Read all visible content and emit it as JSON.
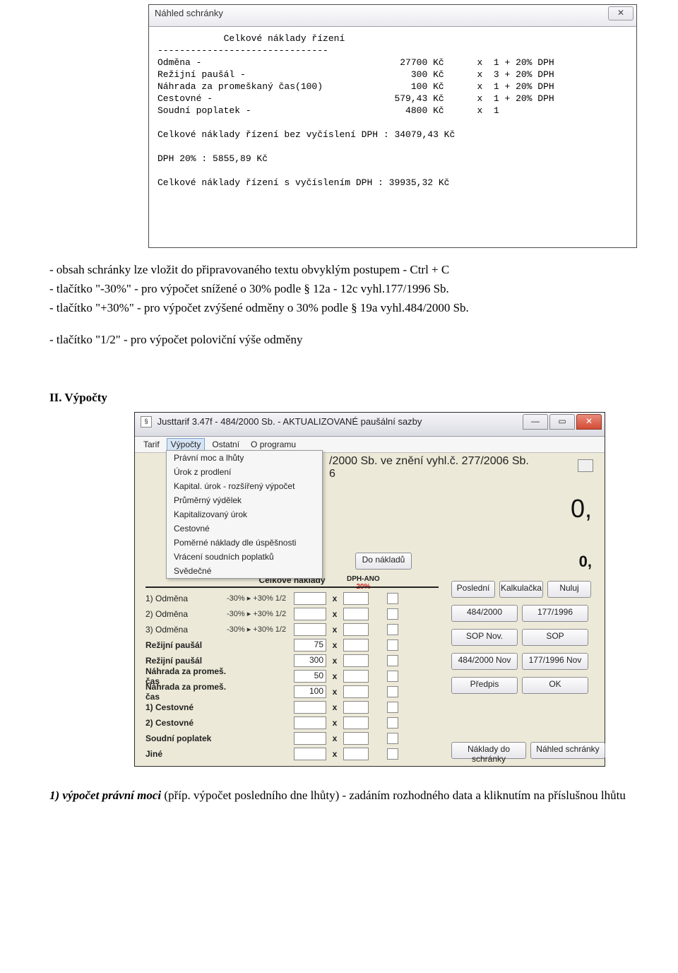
{
  "win1": {
    "title": "Náhled schránky",
    "close": "✕",
    "header": "Celkové náklady řízení",
    "dashes": "-------------------------------",
    "rows": [
      {
        "label": "Odměna -",
        "amount": "27700 Kč",
        "mult": "x  1 + 20% DPH"
      },
      {
        "label": "Režijní paušál -",
        "amount": "300 Kč",
        "mult": "x  3 + 20% DPH"
      },
      {
        "label": "Náhrada za promeškaný čas(100)",
        "amount": "100 Kč",
        "mult": "x  1 + 20% DPH"
      },
      {
        "label": "Cestovné -",
        "amount": "579,43 Kč",
        "mult": "x  1 + 20% DPH"
      },
      {
        "label": "Soudní poplatek -",
        "amount": "4800 Kč",
        "mult": "x  1"
      }
    ],
    "sum1": "Celkové náklady řízení bez vyčíslení DPH : 34079,43 Kč",
    "dphline": "DPH 20% : 5855,89 Kč",
    "sum2": "Celkové náklady řízení s vyčíslením DPH : 39935,32 Kč"
  },
  "body": {
    "p1": "- obsah schránky lze vložit do připravovaného  textu obvyklým postupem - Ctrl + C",
    "p2": "- tlačítko  \"-30%\"  -  pro  výpočet  snížené  o  30%  podle  §  12a  -  12c  vyhl.177/1996  Sb.",
    "p3": "- tlačítko  \"+30%\" - pro výpočet zvýšené odměny o 30% podle § 19a vyhl.484/2000 Sb.",
    "p4": "- tlačítko  \"1/2\"  - pro výpočet poloviční výše odměny",
    "h2": "II. Výpočty"
  },
  "win2": {
    "title": "Justtarif 3.47f  -  484/2000 Sb.  -  AKTUALIZOVANÉ paušální sazby",
    "menu": [
      "Tarif",
      "Výpočty",
      "Ostatní",
      "O programu"
    ],
    "dropdown": [
      "Právní moc a lhůty",
      "Úrok z prodlení",
      "Kapital. úrok - rozšířený výpočet",
      "Průměrný výdělek",
      "Kapitalizovaný úrok",
      "Cestovné",
      "Poměrné náklady dle úspěšnosti",
      "Vrácení soudních poplatků",
      "Svědečné"
    ],
    "banner_line1": "/2000 Sb. ve znění vyhl.č. 277/2006 Sb.",
    "banner_line2": "6",
    "bigzero": "0,",
    "zero2": "0,",
    "donakladu": "Do nákladů",
    "rowy": "y",
    "tableHeader": "Celkové náklady",
    "dph_label": "DPH-ANO",
    "dph_pct": "20%",
    "rows": [
      {
        "label": "1) Odměna",
        "mod": "-30% ▸ +30% 1/2",
        "val": "",
        "x": "x"
      },
      {
        "label": "2) Odměna",
        "mod": "-30% ▸ +30% 1/2",
        "val": "",
        "x": "x"
      },
      {
        "label": "3) Odměna",
        "mod": "-30% ▸ +30% 1/2",
        "val": "",
        "x": "x"
      },
      {
        "label": "Režijní paušál",
        "mod": "",
        "val": "75",
        "x": "x"
      },
      {
        "label": "Režijní paušál",
        "mod": "",
        "val": "300",
        "x": "x"
      },
      {
        "label": "Náhrada za promeš. čas",
        "mod": "",
        "val": "50",
        "x": "x"
      },
      {
        "label": "Náhrada za promeš. čas",
        "mod": "",
        "val": "100",
        "x": "x"
      },
      {
        "label": "1) Cestovné",
        "mod": "",
        "val": "",
        "x": "x"
      },
      {
        "label": "2) Cestovné",
        "mod": "",
        "val": "",
        "x": "x"
      },
      {
        "label": "Soudní poplatek",
        "mod": "",
        "val": "",
        "x": "x"
      },
      {
        "label": "Jiné",
        "mod": "",
        "val": "",
        "x": "x"
      }
    ],
    "rightBtns": [
      [
        "Poslední",
        "Kalkulačka",
        "Nuluj"
      ],
      [
        "484/2000",
        "177/1996"
      ],
      [
        "SOP Nov.",
        "SOP"
      ],
      [
        "484/2000 Nov",
        "177/1996 Nov"
      ],
      [
        "Předpis",
        "OK"
      ]
    ],
    "bottomBtns": [
      "Náklady do schránky",
      "Náhled schránky"
    ]
  },
  "bottom": {
    "lead": "1) výpočet právní moci",
    "rest": "  (příp. výpočet posledního dne lhůty) - zadáním rozhodného data a kliknutím na příslušnou lhůtu"
  }
}
